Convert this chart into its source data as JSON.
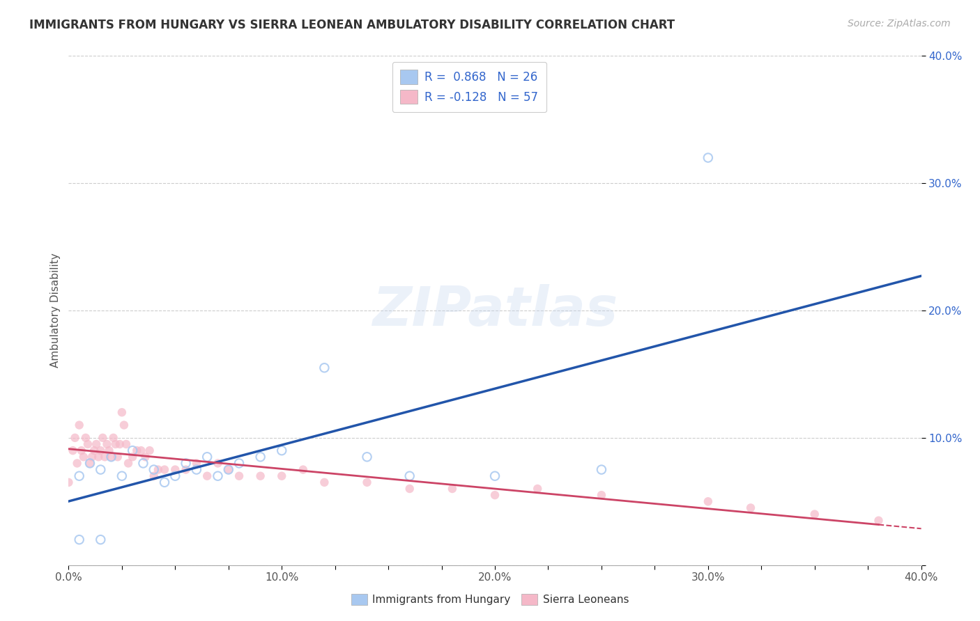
{
  "title": "IMMIGRANTS FROM HUNGARY VS SIERRA LEONEAN AMBULATORY DISABILITY CORRELATION CHART",
  "source": "Source: ZipAtlas.com",
  "ylabel": "Ambulatory Disability",
  "legend_blue_label": "Immigrants from Hungary",
  "legend_pink_label": "Sierra Leoneans",
  "legend_blue_r": "R =  0.868",
  "legend_blue_n": "N = 26",
  "legend_pink_r": "R = -0.128",
  "legend_pink_n": "N = 57",
  "blue_color": "#a8c8f0",
  "pink_color": "#f0a8b8",
  "blue_fill_color": "#a8c8f0",
  "pink_fill_color": "#f5b8c8",
  "blue_line_color": "#2255aa",
  "pink_line_color": "#cc4466",
  "text_color": "#3366cc",
  "watermark": "ZIPatlas",
  "xmin": 0.0,
  "xmax": 0.4,
  "ymin": 0.0,
  "ymax": 0.4,
  "blue_scatter_x": [
    0.005,
    0.01,
    0.015,
    0.02,
    0.025,
    0.03,
    0.035,
    0.04,
    0.045,
    0.05,
    0.055,
    0.06,
    0.065,
    0.07,
    0.075,
    0.08,
    0.09,
    0.1,
    0.12,
    0.14,
    0.16,
    0.2,
    0.25,
    0.3,
    0.005,
    0.015
  ],
  "blue_scatter_y": [
    0.07,
    0.08,
    0.075,
    0.085,
    0.07,
    0.09,
    0.08,
    0.075,
    0.065,
    0.07,
    0.08,
    0.075,
    0.085,
    0.07,
    0.075,
    0.08,
    0.085,
    0.09,
    0.155,
    0.085,
    0.07,
    0.07,
    0.075,
    0.32,
    0.02,
    0.02
  ],
  "pink_scatter_x": [
    0.0,
    0.002,
    0.003,
    0.004,
    0.005,
    0.006,
    0.007,
    0.008,
    0.009,
    0.01,
    0.011,
    0.012,
    0.013,
    0.014,
    0.015,
    0.016,
    0.017,
    0.018,
    0.019,
    0.02,
    0.021,
    0.022,
    0.023,
    0.024,
    0.025,
    0.026,
    0.027,
    0.028,
    0.03,
    0.032,
    0.034,
    0.036,
    0.038,
    0.04,
    0.042,
    0.045,
    0.05,
    0.055,
    0.06,
    0.065,
    0.07,
    0.075,
    0.08,
    0.09,
    0.1,
    0.11,
    0.12,
    0.14,
    0.16,
    0.18,
    0.2,
    0.22,
    0.25,
    0.3,
    0.32,
    0.35,
    0.38
  ],
  "pink_scatter_y": [
    0.065,
    0.09,
    0.1,
    0.08,
    0.11,
    0.09,
    0.085,
    0.1,
    0.095,
    0.08,
    0.085,
    0.09,
    0.095,
    0.085,
    0.09,
    0.1,
    0.085,
    0.095,
    0.09,
    0.085,
    0.1,
    0.095,
    0.085,
    0.095,
    0.12,
    0.11,
    0.095,
    0.08,
    0.085,
    0.09,
    0.09,
    0.085,
    0.09,
    0.07,
    0.075,
    0.075,
    0.075,
    0.075,
    0.08,
    0.07,
    0.08,
    0.075,
    0.07,
    0.07,
    0.07,
    0.075,
    0.065,
    0.065,
    0.06,
    0.06,
    0.055,
    0.06,
    0.055,
    0.05,
    0.045,
    0.04,
    0.035
  ],
  "bg_color": "#ffffff",
  "grid_color": "#cccccc",
  "ytick_labels": [
    "",
    "10.0%",
    "20.0%",
    "30.0%",
    "40.0%"
  ],
  "ytick_values": [
    0.0,
    0.1,
    0.2,
    0.3,
    0.4
  ],
  "xtick_labels": [
    "0.0%",
    "",
    "",
    "",
    "10.0%",
    "",
    "",
    "",
    "20.0%",
    "",
    "",
    "",
    "30.0%",
    "",
    "",
    "",
    "40.0%"
  ],
  "xtick_values": [
    0.0,
    0.025,
    0.05,
    0.075,
    0.1,
    0.125,
    0.15,
    0.175,
    0.2,
    0.225,
    0.25,
    0.275,
    0.3,
    0.325,
    0.35,
    0.375,
    0.4
  ]
}
